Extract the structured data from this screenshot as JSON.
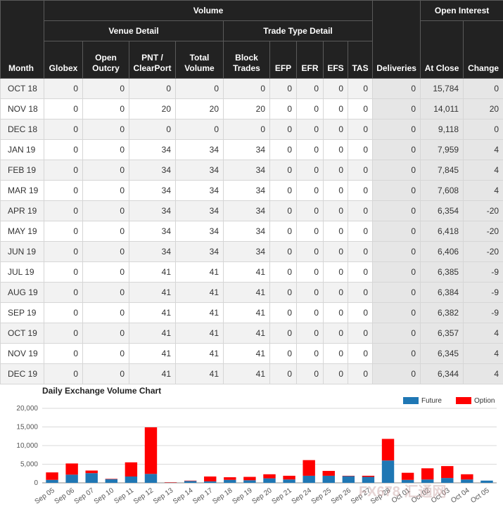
{
  "table": {
    "group_headers": {
      "volume": "Volume",
      "open_interest": "Open Interest"
    },
    "sub_headers": {
      "venue_detail": "Venue Detail",
      "trade_type_detail": "Trade Type Detail"
    },
    "columns": {
      "month": "Month",
      "globex": "Globex",
      "open_outcry": "Open Outcry",
      "pnt": "PNT / ClearPort",
      "total_volume": "Total Volume",
      "block_trades": "Block Trades",
      "efp": "EFP",
      "efr": "EFR",
      "efs": "EFS",
      "tas": "TAS",
      "deliveries": "Deliveries",
      "at_close": "At Close",
      "change": "Change"
    },
    "rows": [
      {
        "month": "OCT 18",
        "globex": "0",
        "open_outcry": "0",
        "pnt": "0",
        "total_volume": "0",
        "block_trades": "0",
        "efp": "0",
        "efr": "0",
        "efs": "0",
        "tas": "0",
        "deliveries": "0",
        "at_close": "15,784",
        "change": "0"
      },
      {
        "month": "NOV 18",
        "globex": "0",
        "open_outcry": "0",
        "pnt": "20",
        "total_volume": "20",
        "block_trades": "20",
        "efp": "0",
        "efr": "0",
        "efs": "0",
        "tas": "0",
        "deliveries": "0",
        "at_close": "14,011",
        "change": "20"
      },
      {
        "month": "DEC 18",
        "globex": "0",
        "open_outcry": "0",
        "pnt": "0",
        "total_volume": "0",
        "block_trades": "0",
        "efp": "0",
        "efr": "0",
        "efs": "0",
        "tas": "0",
        "deliveries": "0",
        "at_close": "9,118",
        "change": "0"
      },
      {
        "month": "JAN 19",
        "globex": "0",
        "open_outcry": "0",
        "pnt": "34",
        "total_volume": "34",
        "block_trades": "34",
        "efp": "0",
        "efr": "0",
        "efs": "0",
        "tas": "0",
        "deliveries": "0",
        "at_close": "7,959",
        "change": "4"
      },
      {
        "month": "FEB 19",
        "globex": "0",
        "open_outcry": "0",
        "pnt": "34",
        "total_volume": "34",
        "block_trades": "34",
        "efp": "0",
        "efr": "0",
        "efs": "0",
        "tas": "0",
        "deliveries": "0",
        "at_close": "7,845",
        "change": "4"
      },
      {
        "month": "MAR 19",
        "globex": "0",
        "open_outcry": "0",
        "pnt": "34",
        "total_volume": "34",
        "block_trades": "34",
        "efp": "0",
        "efr": "0",
        "efs": "0",
        "tas": "0",
        "deliveries": "0",
        "at_close": "7,608",
        "change": "4"
      },
      {
        "month": "APR 19",
        "globex": "0",
        "open_outcry": "0",
        "pnt": "34",
        "total_volume": "34",
        "block_trades": "34",
        "efp": "0",
        "efr": "0",
        "efs": "0",
        "tas": "0",
        "deliveries": "0",
        "at_close": "6,354",
        "change": "-20"
      },
      {
        "month": "MAY 19",
        "globex": "0",
        "open_outcry": "0",
        "pnt": "34",
        "total_volume": "34",
        "block_trades": "34",
        "efp": "0",
        "efr": "0",
        "efs": "0",
        "tas": "0",
        "deliveries": "0",
        "at_close": "6,418",
        "change": "-20"
      },
      {
        "month": "JUN 19",
        "globex": "0",
        "open_outcry": "0",
        "pnt": "34",
        "total_volume": "34",
        "block_trades": "34",
        "efp": "0",
        "efr": "0",
        "efs": "0",
        "tas": "0",
        "deliveries": "0",
        "at_close": "6,406",
        "change": "-20"
      },
      {
        "month": "JUL 19",
        "globex": "0",
        "open_outcry": "0",
        "pnt": "41",
        "total_volume": "41",
        "block_trades": "41",
        "efp": "0",
        "efr": "0",
        "efs": "0",
        "tas": "0",
        "deliveries": "0",
        "at_close": "6,385",
        "change": "-9"
      },
      {
        "month": "AUG 19",
        "globex": "0",
        "open_outcry": "0",
        "pnt": "41",
        "total_volume": "41",
        "block_trades": "41",
        "efp": "0",
        "efr": "0",
        "efs": "0",
        "tas": "0",
        "deliveries": "0",
        "at_close": "6,384",
        "change": "-9"
      },
      {
        "month": "SEP 19",
        "globex": "0",
        "open_outcry": "0",
        "pnt": "41",
        "total_volume": "41",
        "block_trades": "41",
        "efp": "0",
        "efr": "0",
        "efs": "0",
        "tas": "0",
        "deliveries": "0",
        "at_close": "6,382",
        "change": "-9"
      },
      {
        "month": "OCT 19",
        "globex": "0",
        "open_outcry": "0",
        "pnt": "41",
        "total_volume": "41",
        "block_trades": "41",
        "efp": "0",
        "efr": "0",
        "efs": "0",
        "tas": "0",
        "deliveries": "0",
        "at_close": "6,357",
        "change": "4"
      },
      {
        "month": "NOV 19",
        "globex": "0",
        "open_outcry": "0",
        "pnt": "41",
        "total_volume": "41",
        "block_trades": "41",
        "efp": "0",
        "efr": "0",
        "efs": "0",
        "tas": "0",
        "deliveries": "0",
        "at_close": "6,345",
        "change": "4"
      },
      {
        "month": "DEC 19",
        "globex": "0",
        "open_outcry": "0",
        "pnt": "41",
        "total_volume": "41",
        "block_trades": "41",
        "efp": "0",
        "efr": "0",
        "efs": "0",
        "tas": "0",
        "deliveries": "0",
        "at_close": "6,344",
        "change": "4"
      }
    ]
  },
  "chart_data": {
    "type": "bar",
    "stacked": true,
    "title": "Daily Exchange Volume Chart",
    "xlabel": "",
    "ylabel": "",
    "categories": [
      "Sep 05",
      "Sep 06",
      "Sep 07",
      "Sep 10",
      "Sep 11",
      "Sep 12",
      "Sep 13",
      "Sep 14",
      "Sep 17",
      "Sep 18",
      "Sep 19",
      "Sep 20",
      "Sep 21",
      "Sep 24",
      "Sep 25",
      "Sep 26",
      "Sep 27",
      "Sep 28",
      "Oct 01",
      "Oct 02",
      "Oct 03",
      "Oct 04",
      "Oct 05"
    ],
    "series": [
      {
        "name": "Future",
        "color": "#1f77b4",
        "values": [
          800,
          2200,
          2600,
          1000,
          1700,
          2400,
          50,
          500,
          400,
          800,
          700,
          1200,
          900,
          1900,
          1900,
          1800,
          1600,
          6000,
          800,
          900,
          1300,
          900,
          600
        ]
      },
      {
        "name": "Option",
        "color": "#ff0000",
        "values": [
          2000,
          3000,
          700,
          100,
          3800,
          12500,
          100,
          100,
          1300,
          700,
          900,
          1100,
          1000,
          4200,
          1300,
          100,
          300,
          5800,
          1900,
          3000,
          3200,
          1400,
          0
        ]
      }
    ],
    "ylim": [
      0,
      20000
    ],
    "yticks": [
      "0",
      "5,000",
      "10,000",
      "15,000",
      "20,000"
    ],
    "legend_position": "top-right",
    "grid": true
  },
  "watermark": "FX678 汇通网"
}
